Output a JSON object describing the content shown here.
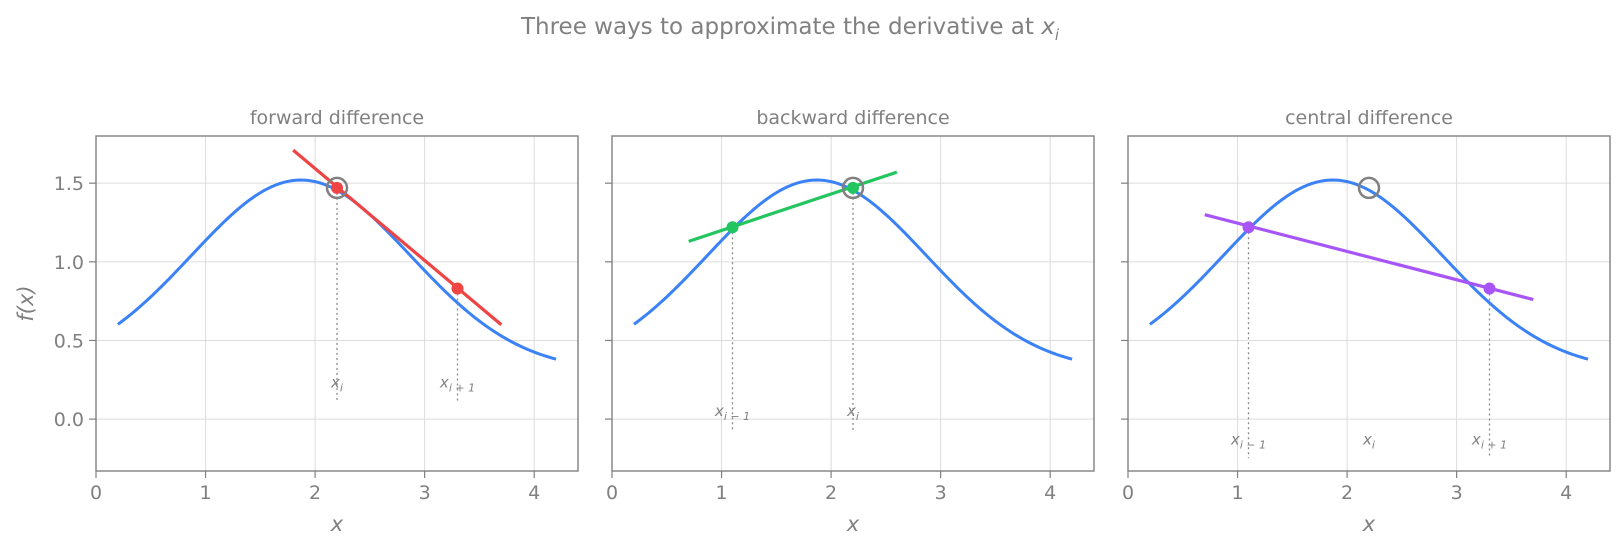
{
  "figure": {
    "suptitle": "Three ways to approximate the derivative at ",
    "suptitle_symbol": "x",
    "suptitle_sub": "i"
  },
  "chart_data": [
    {
      "type": "line",
      "title": "forward difference",
      "xlabel": "x",
      "ylabel": "f(x)",
      "xlim": [
        0,
        4.4
      ],
      "ylim": [
        -0.33,
        1.8
      ],
      "xticks": [
        0,
        1,
        2,
        3,
        4
      ],
      "yticks": [
        0.0,
        0.5,
        1.0,
        1.5
      ],
      "grid": true,
      "curve": {
        "color": "#3b82f6",
        "x_range": [
          0.2,
          4.2
        ]
      },
      "secant": {
        "color": "#ef4444",
        "x": [
          1.8,
          3.7
        ],
        "y": [
          1.71,
          0.6
        ]
      },
      "focus_point": {
        "x": 2.2,
        "y": 1.47
      },
      "points": [
        {
          "x": 2.2,
          "y": 1.47,
          "label": "x",
          "sub": "i",
          "label_y": 0.2
        },
        {
          "x": 3.3,
          "y": 0.83,
          "label": "x",
          "sub": "i + 1",
          "label_y": 0.2
        }
      ]
    },
    {
      "type": "line",
      "title": "backward difference",
      "xlabel": "x",
      "ylabel": "",
      "xlim": [
        0,
        4.4
      ],
      "ylim": [
        -0.33,
        1.8
      ],
      "xticks": [
        0,
        1,
        2,
        3,
        4
      ],
      "yticks": [
        0.0,
        0.5,
        1.0,
        1.5
      ],
      "grid": true,
      "curve": {
        "color": "#3b82f6",
        "x_range": [
          0.2,
          4.2
        ]
      },
      "secant": {
        "color": "#22c55e",
        "x": [
          0.7,
          2.6
        ],
        "y": [
          1.13,
          1.57
        ]
      },
      "focus_point": {
        "x": 2.2,
        "y": 1.47
      },
      "points": [
        {
          "x": 1.1,
          "y": 1.22,
          "label": "x",
          "sub": "i − 1",
          "label_y": 0.02
        },
        {
          "x": 2.2,
          "y": 1.47,
          "label": "x",
          "sub": "i",
          "label_y": 0.02
        }
      ]
    },
    {
      "type": "line",
      "title": "central difference",
      "xlabel": "x",
      "ylabel": "",
      "xlim": [
        0,
        4.4
      ],
      "ylim": [
        -0.33,
        1.8
      ],
      "xticks": [
        0,
        1,
        2,
        3,
        4
      ],
      "yticks": [
        0.0,
        0.5,
        1.0,
        1.5
      ],
      "grid": true,
      "curve": {
        "color": "#3b82f6",
        "x_range": [
          0.2,
          4.2
        ]
      },
      "secant": {
        "color": "#a855f7",
        "x": [
          0.7,
          3.7
        ],
        "y": [
          1.3,
          0.76
        ]
      },
      "focus_point": {
        "x": 2.2,
        "y": 1.47
      },
      "points": [
        {
          "x": 1.1,
          "y": 1.22,
          "label": "x",
          "sub": "i − 1",
          "label_y": -0.16
        },
        {
          "x": 3.3,
          "y": 0.83,
          "label": "x",
          "sub": "i + 1",
          "label_y": -0.16
        }
      ],
      "center_label": {
        "x": 2.2,
        "label": "x",
        "sub": "i",
        "label_y": -0.16
      }
    }
  ]
}
